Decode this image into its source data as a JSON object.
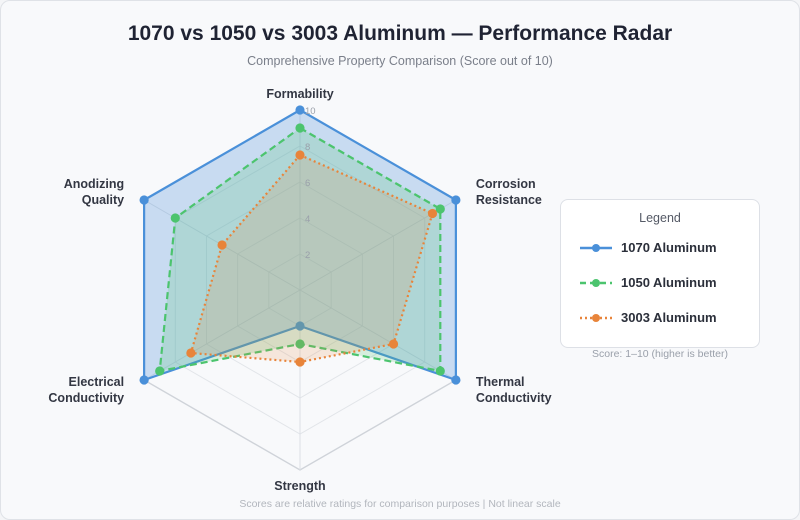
{
  "title": "1070 vs 1050 vs 3003 Aluminum — Performance Radar",
  "subtitle": "Comprehensive Property Comparison (Score out of 10)",
  "legend": {
    "title": "Legend",
    "score_note": "Score: 1–10 (higher is better)"
  },
  "footnote": "Scores are relative ratings for comparison purposes | Not linear scale",
  "chart_data": {
    "type": "radar",
    "axes": [
      [
        "Formability"
      ],
      [
        "Corrosion",
        "Resistance"
      ],
      [
        "Thermal",
        "Conductivity"
      ],
      [
        "Strength"
      ],
      [
        "Electrical",
        "Conductivity"
      ],
      [
        "Anodizing",
        "Quality"
      ]
    ],
    "range": [
      0,
      10
    ],
    "ticks": [
      "2",
      "4",
      "6",
      "8",
      "10"
    ],
    "tick_values": [
      2,
      4,
      6,
      8,
      10
    ],
    "series": [
      {
        "name": "1070 Aluminum",
        "values": [
          10,
          10,
          10,
          2,
          10,
          10
        ],
        "color": "#4a90d9",
        "style": "solid"
      },
      {
        "name": "1050 Aluminum",
        "values": [
          9,
          9,
          9,
          3,
          9,
          8
        ],
        "color": "#4cc46e",
        "style": "dashed"
      },
      {
        "name": "3003 Aluminum",
        "values": [
          7.5,
          8.5,
          6,
          4,
          7,
          5
        ],
        "color": "#e8843a",
        "style": "dotted"
      }
    ]
  }
}
